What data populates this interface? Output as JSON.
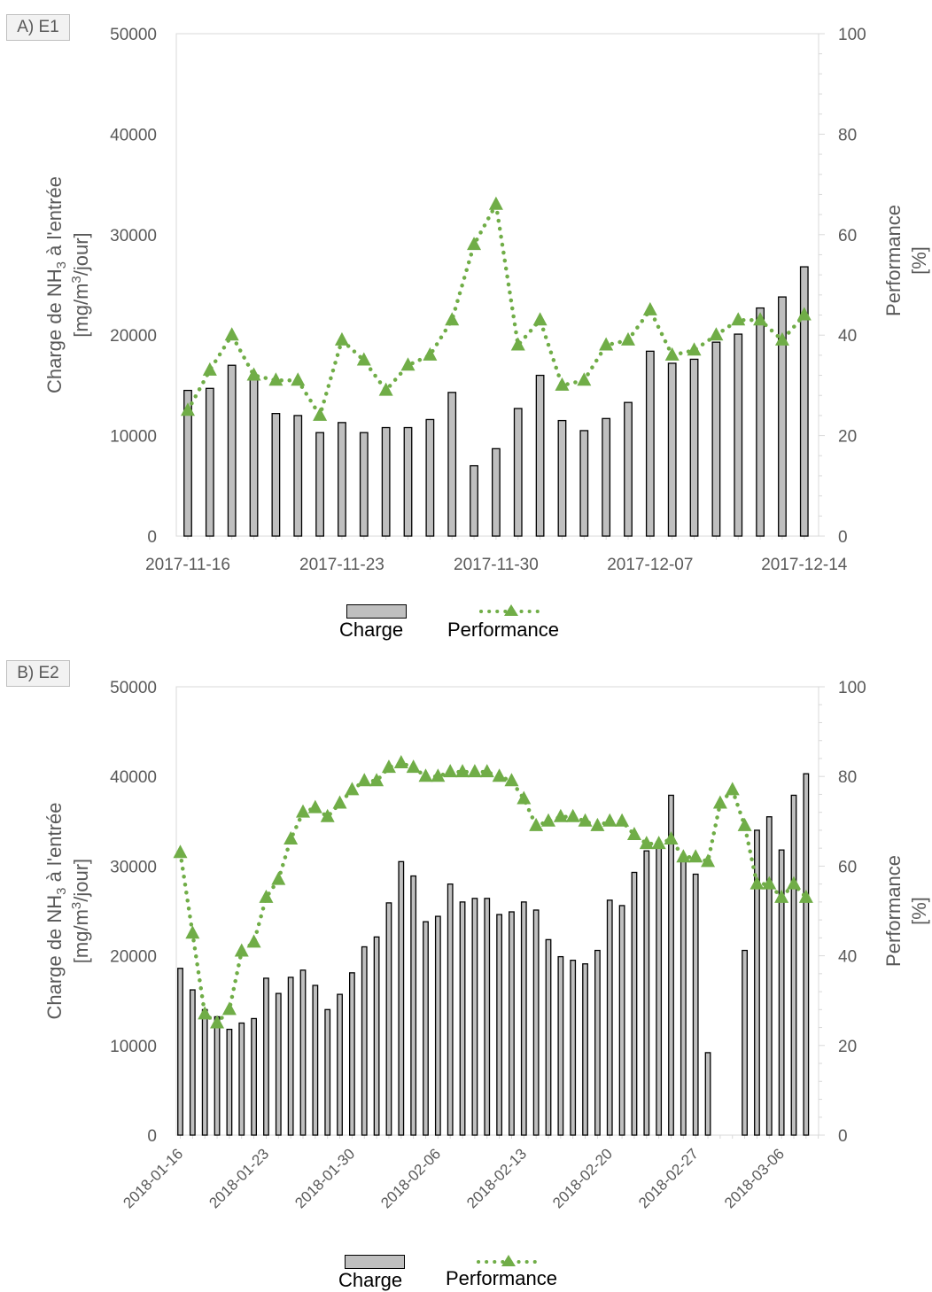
{
  "charts": {
    "a": {
      "tag": "A) E1",
      "y_axis_label_line1": "Charge de NH",
      "y_axis_label_sub": "3",
      "y_axis_label_line1_end": " à l'entrée",
      "y_axis_label_line2_pre": "[mg/m",
      "y_axis_label_sup": "3",
      "y_axis_label_line2_post": "/jour]",
      "y2_axis_label_line1": "Performance",
      "y2_axis_label_line2": "[%]",
      "legend_charge": "Charge",
      "legend_performance": "Performance"
    },
    "b": {
      "tag": "B) E2",
      "y_axis_label_line1": "Charge de NH",
      "y_axis_label_sub": "3",
      "y_axis_label_line1_end": " à l'entrée",
      "y_axis_label_line2_pre": "[mg/m",
      "y_axis_label_sup": "3",
      "y_axis_label_line2_post": "/jour]",
      "y2_axis_label_line1": "Performance",
      "y2_axis_label_line2": "[%]",
      "legend_charge": "Charge",
      "legend_performance": "Performance"
    }
  },
  "colors": {
    "bar_fill": "#bfbfbf",
    "bar_stroke": "#000000",
    "performance": "#70ad47",
    "grid": "#d9d9d9"
  },
  "chart_data": [
    {
      "type": "bar+line",
      "title": "A) E1",
      "x_start": "2017-11-16",
      "xtick_labels": [
        "2017-11-16",
        "2017-11-23",
        "2017-11-30",
        "2017-12-07",
        "2017-12-14"
      ],
      "ylabel": "Charge de NH3 à l'entrée [mg/m3/jour]",
      "y2label": "Performance [%]",
      "ylim": [
        0,
        50000
      ],
      "y_ticks": [
        0,
        10000,
        20000,
        30000,
        40000,
        50000
      ],
      "y2lim": [
        0,
        100
      ],
      "y2_ticks": [
        0,
        20,
        40,
        60,
        80,
        100
      ],
      "series": [
        {
          "name": "Charge",
          "type": "bar",
          "points": [
            [
              "2017-11-16",
              14500
            ],
            [
              "2017-11-17",
              14700
            ],
            [
              "2017-11-18",
              17000
            ],
            [
              "2017-11-19",
              15700
            ],
            [
              "2017-11-20",
              12200
            ],
            [
              "2017-11-21",
              12000
            ],
            [
              "2017-11-22",
              10300
            ],
            [
              "2017-11-23",
              11300
            ],
            [
              "2017-11-24",
              10300
            ],
            [
              "2017-11-25",
              10800
            ],
            [
              "2017-11-26",
              10800
            ],
            [
              "2017-11-27",
              11600
            ],
            [
              "2017-11-28",
              14300
            ],
            [
              "2017-11-29",
              7000
            ],
            [
              "2017-11-30",
              8700
            ],
            [
              "2017-12-01",
              12700
            ],
            [
              "2017-12-02",
              16000
            ],
            [
              "2017-12-03",
              11500
            ],
            [
              "2017-12-04",
              10500
            ],
            [
              "2017-12-05",
              11700
            ],
            [
              "2017-12-06",
              13300
            ],
            [
              "2017-12-07",
              18400
            ],
            [
              "2017-12-08",
              17200
            ],
            [
              "2017-12-09",
              17600
            ],
            [
              "2017-12-10",
              19300
            ],
            [
              "2017-12-11",
              20100
            ],
            [
              "2017-12-12",
              22700
            ],
            [
              "2017-12-13",
              23800
            ],
            [
              "2017-12-14",
              26800
            ]
          ]
        },
        {
          "name": "Performance",
          "type": "line",
          "style": "dotted",
          "marker": "triangle",
          "points": [
            [
              "2017-11-16",
              25
            ],
            [
              "2017-11-17",
              33
            ],
            [
              "2017-11-18",
              40
            ],
            [
              "2017-11-19",
              32
            ],
            [
              "2017-11-20",
              31
            ],
            [
              "2017-11-21",
              31
            ],
            [
              "2017-11-22",
              24
            ],
            [
              "2017-11-23",
              39
            ],
            [
              "2017-11-24",
              35
            ],
            [
              "2017-11-25",
              29
            ],
            [
              "2017-11-26",
              34
            ],
            [
              "2017-11-27",
              36
            ],
            [
              "2017-11-28",
              43
            ],
            [
              "2017-11-29",
              58
            ],
            [
              "2017-11-30",
              66
            ],
            [
              "2017-12-01",
              38
            ],
            [
              "2017-12-02",
              43
            ],
            [
              "2017-12-03",
              30
            ],
            [
              "2017-12-04",
              31
            ],
            [
              "2017-12-05",
              38
            ],
            [
              "2017-12-06",
              39
            ],
            [
              "2017-12-07",
              45
            ],
            [
              "2017-12-08",
              36
            ],
            [
              "2017-12-09",
              37
            ],
            [
              "2017-12-10",
              40
            ],
            [
              "2017-12-11",
              43
            ],
            [
              "2017-12-12",
              43
            ],
            [
              "2017-12-13",
              39
            ],
            [
              "2017-12-14",
              44
            ]
          ]
        }
      ],
      "legend": "bottom"
    },
    {
      "type": "bar+line",
      "title": "B) E2",
      "x_start": "2018-01-16",
      "xtick_labels": [
        "2018-01-16",
        "2018-01-23",
        "2018-01-30",
        "2018-02-06",
        "2018-02-13",
        "2018-02-20",
        "2018-02-27",
        "2018-03-06"
      ],
      "ylabel": "Charge de NH3 à l'entrée [mg/m3/jour]",
      "y2label": "Performance [%]",
      "ylim": [
        0,
        50000
      ],
      "y_ticks": [
        0,
        10000,
        20000,
        30000,
        40000,
        50000
      ],
      "y2lim": [
        0,
        100
      ],
      "y2_ticks": [
        0,
        20,
        40,
        60,
        80,
        100
      ],
      "series": [
        {
          "name": "Charge",
          "type": "bar",
          "points": [
            [
              "2018-01-16",
              18600
            ],
            [
              "2018-01-17",
              16200
            ],
            [
              "2018-01-18",
              14000
            ],
            [
              "2018-01-19",
              13200
            ],
            [
              "2018-01-20",
              11800
            ],
            [
              "2018-01-21",
              12500
            ],
            [
              "2018-01-22",
              13000
            ],
            [
              "2018-01-23",
              17500
            ],
            [
              "2018-01-24",
              15800
            ],
            [
              "2018-01-25",
              17600
            ],
            [
              "2018-01-26",
              18400
            ],
            [
              "2018-01-27",
              16700
            ],
            [
              "2018-01-28",
              14000
            ],
            [
              "2018-01-29",
              15700
            ],
            [
              "2018-01-30",
              18100
            ],
            [
              "2018-01-31",
              21000
            ],
            [
              "2018-02-01",
              22100
            ],
            [
              "2018-02-02",
              25900
            ],
            [
              "2018-02-03",
              30500
            ],
            [
              "2018-02-04",
              28900
            ],
            [
              "2018-02-05",
              23800
            ],
            [
              "2018-02-06",
              24400
            ],
            [
              "2018-02-07",
              28000
            ],
            [
              "2018-02-08",
              26000
            ],
            [
              "2018-02-09",
              26400
            ],
            [
              "2018-02-10",
              26400
            ],
            [
              "2018-02-11",
              24600
            ],
            [
              "2018-02-12",
              24900
            ],
            [
              "2018-02-13",
              26000
            ],
            [
              "2018-02-14",
              25100
            ],
            [
              "2018-02-15",
              21800
            ],
            [
              "2018-02-16",
              19900
            ],
            [
              "2018-02-17",
              19500
            ],
            [
              "2018-02-18",
              19100
            ],
            [
              "2018-02-19",
              20600
            ],
            [
              "2018-02-20",
              26200
            ],
            [
              "2018-02-21",
              25600
            ],
            [
              "2018-02-22",
              29300
            ],
            [
              "2018-02-23",
              31700
            ],
            [
              "2018-02-24",
              32700
            ],
            [
              "2018-02-25",
              37900
            ],
            [
              "2018-02-26",
              30700
            ],
            [
              "2018-02-27",
              29100
            ],
            [
              "2018-02-28",
              9200
            ],
            [
              "2018-03-03",
              20600
            ],
            [
              "2018-03-04",
              34000
            ],
            [
              "2018-03-05",
              35500
            ],
            [
              "2018-03-06",
              31800
            ],
            [
              "2018-03-07",
              37900
            ],
            [
              "2018-03-08",
              40300
            ]
          ]
        },
        {
          "name": "Performance",
          "type": "line",
          "style": "dotted",
          "marker": "triangle",
          "points": [
            [
              "2018-01-16",
              63
            ],
            [
              "2018-01-17",
              45
            ],
            [
              "2018-01-18",
              27
            ],
            [
              "2018-01-19",
              25
            ],
            [
              "2018-01-20",
              28
            ],
            [
              "2018-01-21",
              41
            ],
            [
              "2018-01-22",
              43
            ],
            [
              "2018-01-23",
              53
            ],
            [
              "2018-01-24",
              57
            ],
            [
              "2018-01-25",
              66
            ],
            [
              "2018-01-26",
              72
            ],
            [
              "2018-01-27",
              73
            ],
            [
              "2018-01-28",
              71
            ],
            [
              "2018-01-29",
              74
            ],
            [
              "2018-01-30",
              77
            ],
            [
              "2018-01-31",
              79
            ],
            [
              "2018-02-01",
              79
            ],
            [
              "2018-02-02",
              82
            ],
            [
              "2018-02-03",
              83
            ],
            [
              "2018-02-04",
              82
            ],
            [
              "2018-02-05",
              80
            ],
            [
              "2018-02-06",
              80
            ],
            [
              "2018-02-07",
              81
            ],
            [
              "2018-02-08",
              81
            ],
            [
              "2018-02-09",
              81
            ],
            [
              "2018-02-10",
              81
            ],
            [
              "2018-02-11",
              80
            ],
            [
              "2018-02-12",
              79
            ],
            [
              "2018-02-13",
              75
            ],
            [
              "2018-02-14",
              69
            ],
            [
              "2018-02-15",
              70
            ],
            [
              "2018-02-16",
              71
            ],
            [
              "2018-02-17",
              71
            ],
            [
              "2018-02-18",
              70
            ],
            [
              "2018-02-19",
              69
            ],
            [
              "2018-02-20",
              70
            ],
            [
              "2018-02-21",
              70
            ],
            [
              "2018-02-22",
              67
            ],
            [
              "2018-02-23",
              65
            ],
            [
              "2018-02-24",
              65
            ],
            [
              "2018-02-25",
              66
            ],
            [
              "2018-02-26",
              62
            ],
            [
              "2018-02-27",
              62
            ],
            [
              "2018-02-28",
              61
            ],
            [
              "2018-03-01",
              74
            ],
            [
              "2018-03-02",
              77
            ],
            [
              "2018-03-03",
              69
            ],
            [
              "2018-03-04",
              56
            ],
            [
              "2018-03-05",
              56
            ],
            [
              "2018-03-06",
              53
            ],
            [
              "2018-03-07",
              56
            ],
            [
              "2018-03-08",
              53
            ]
          ]
        }
      ],
      "legend": "bottom"
    }
  ]
}
